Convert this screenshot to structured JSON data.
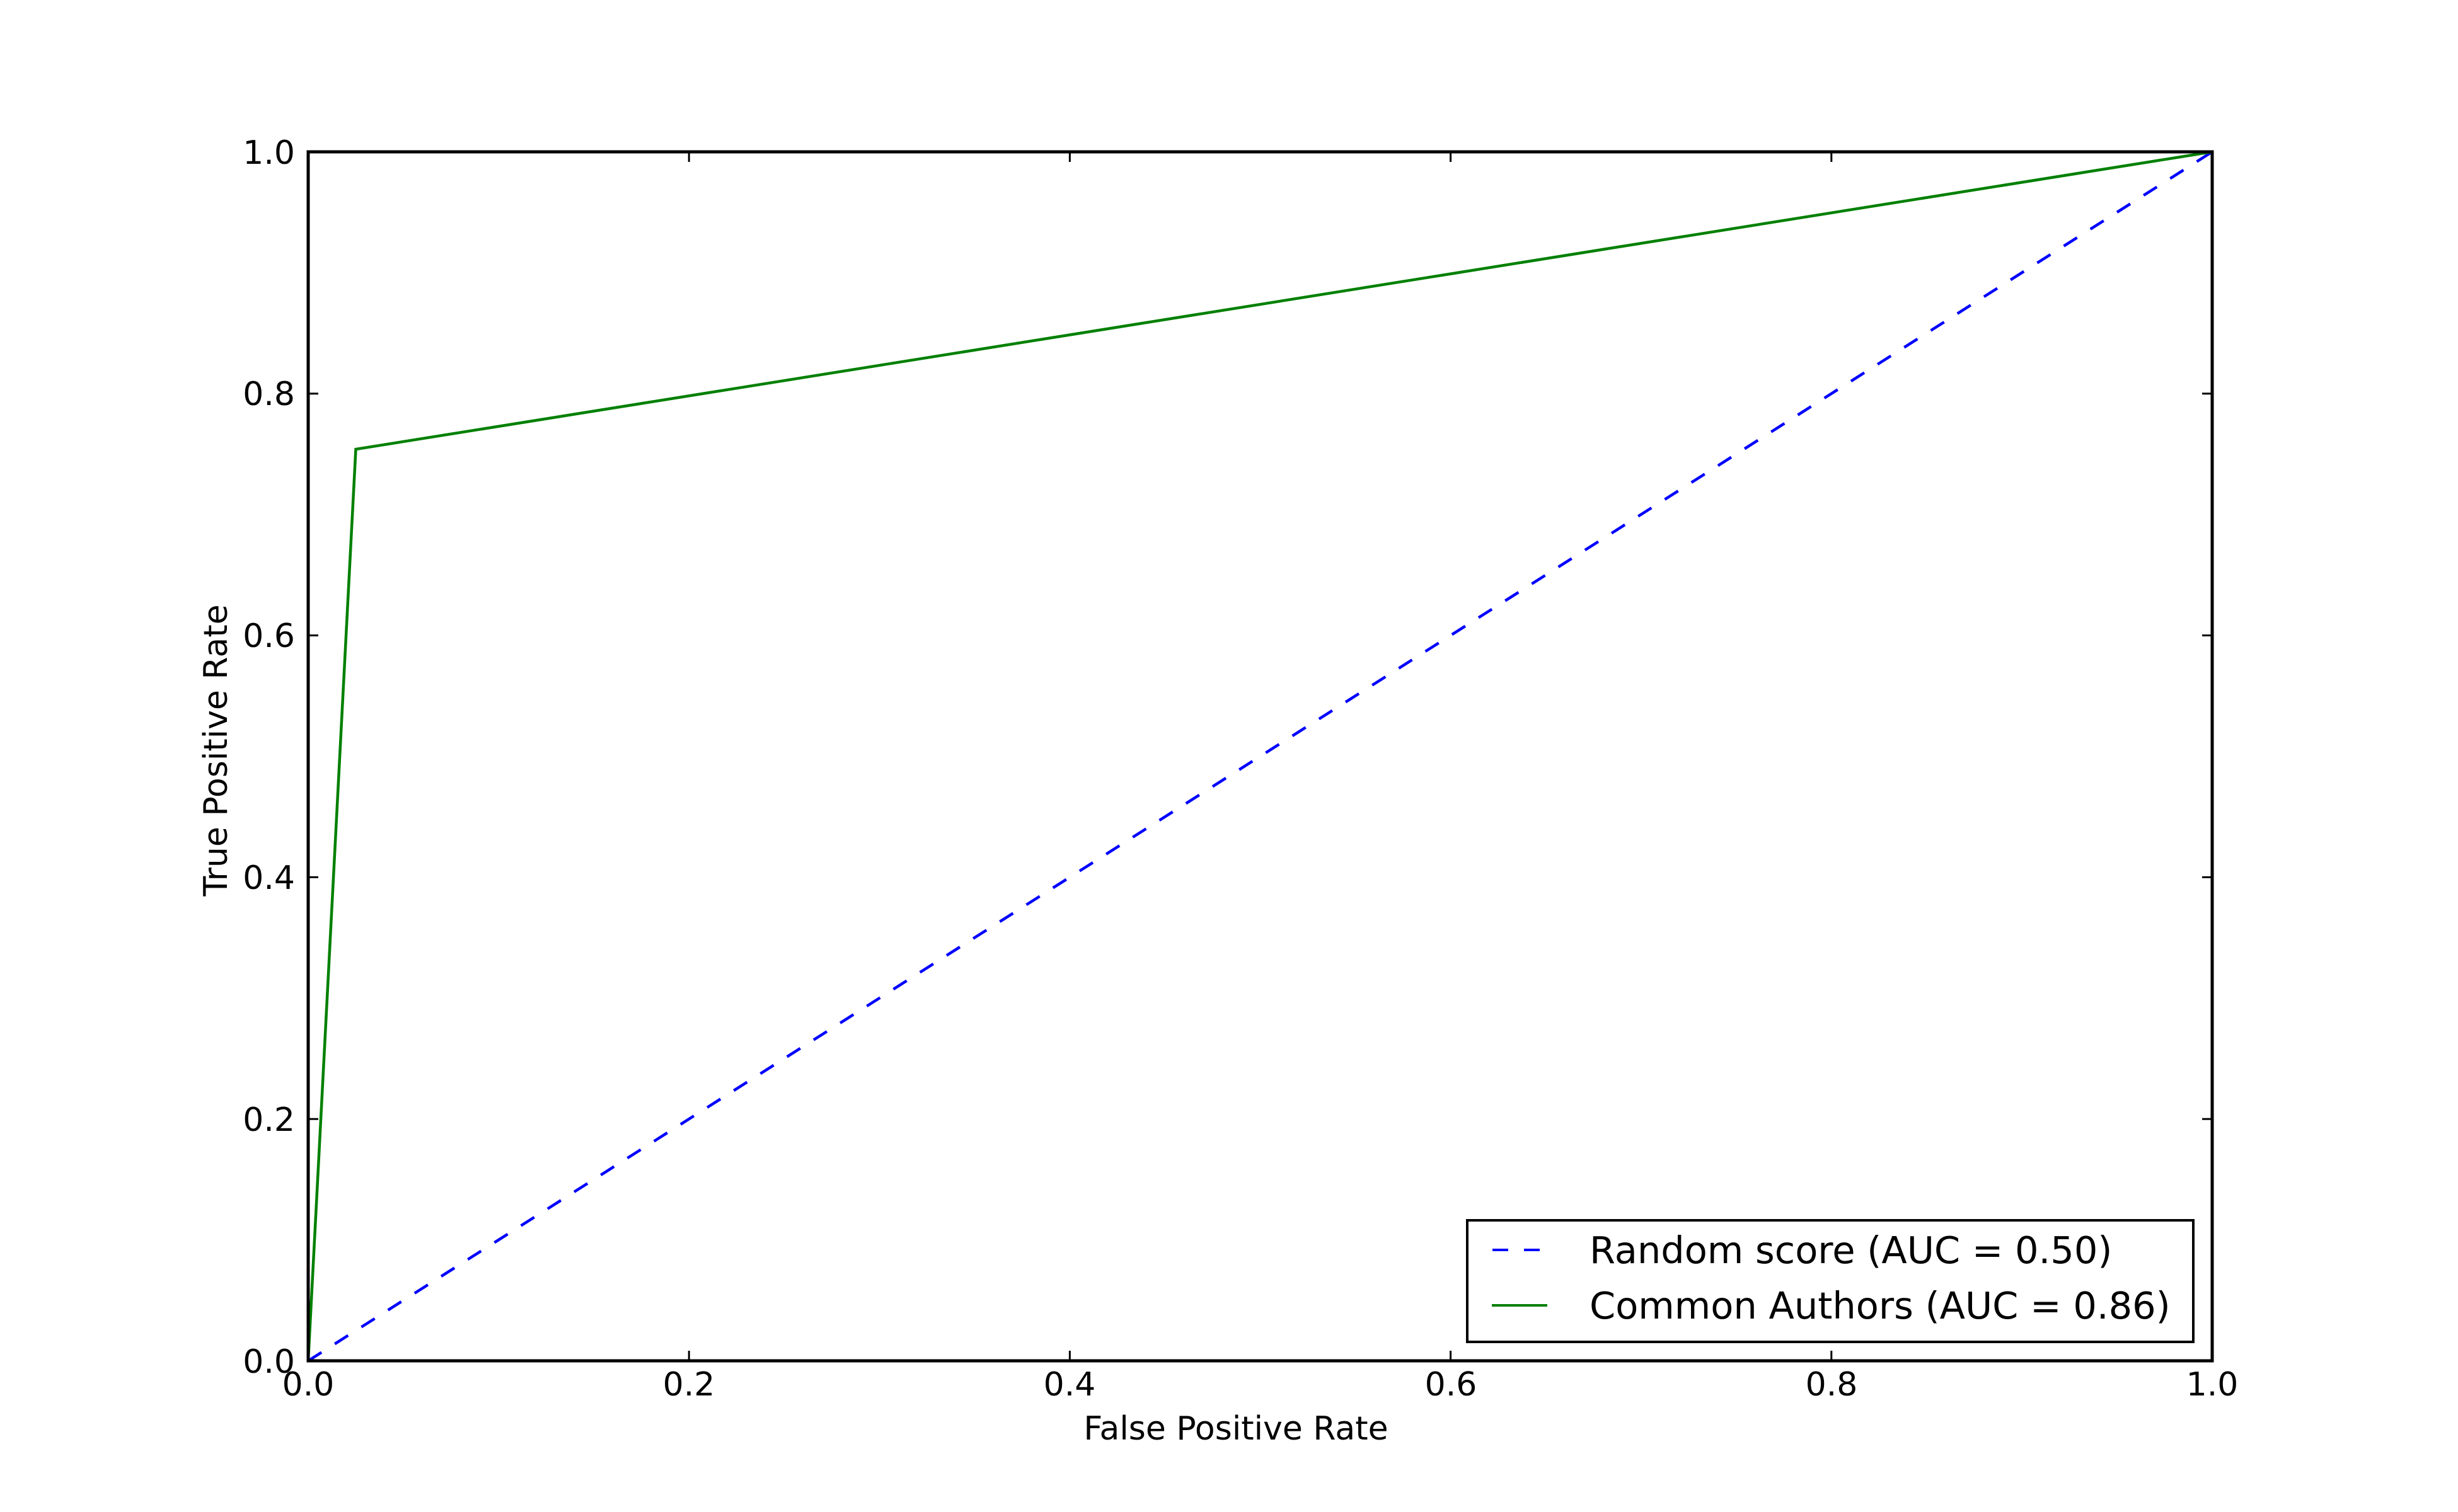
{
  "chart_data": {
    "type": "line",
    "title": "",
    "xlabel": "False Positive Rate",
    "ylabel": "True Positive Rate",
    "xlim": [
      0.0,
      1.0
    ],
    "ylim": [
      0.0,
      1.0
    ],
    "xticks": [
      "0.0",
      "0.2",
      "0.4",
      "0.6",
      "0.8",
      "1.0"
    ],
    "yticks": [
      "0.0",
      "0.2",
      "0.4",
      "0.6",
      "0.8",
      "1.0"
    ],
    "grid": false,
    "legend_position": "lower right",
    "series": [
      {
        "name": "Random score (AUC = 0.50)",
        "label": "Random score",
        "auc": 0.5,
        "color": "#0000ff",
        "linestyle": "dashed",
        "x": [
          0.0,
          1.0
        ],
        "y": [
          0.0,
          1.0
        ]
      },
      {
        "name": "Common Authors (AUC = 0.86)",
        "label": "Common Authors",
        "auc": 0.86,
        "color": "#008000",
        "linestyle": "solid",
        "x": [
          0.0,
          0.025,
          1.0
        ],
        "y": [
          0.0,
          0.754,
          1.0
        ]
      }
    ]
  },
  "axes": {
    "x_label": "False Positive Rate",
    "y_label": "True Positive Rate",
    "x_ticks": [
      "0.0",
      "0.2",
      "0.4",
      "0.6",
      "0.8",
      "1.0"
    ],
    "y_ticks": [
      "0.0",
      "0.2",
      "0.4",
      "0.6",
      "0.8",
      "1.0"
    ]
  },
  "legend": {
    "items": [
      {
        "label": "Random score (AUC = 0.50)",
        "color": "#0000ff",
        "style": "dashed"
      },
      {
        "label": "Common Authors (AUC = 0.86)",
        "color": "#008000",
        "style": "solid"
      }
    ]
  }
}
